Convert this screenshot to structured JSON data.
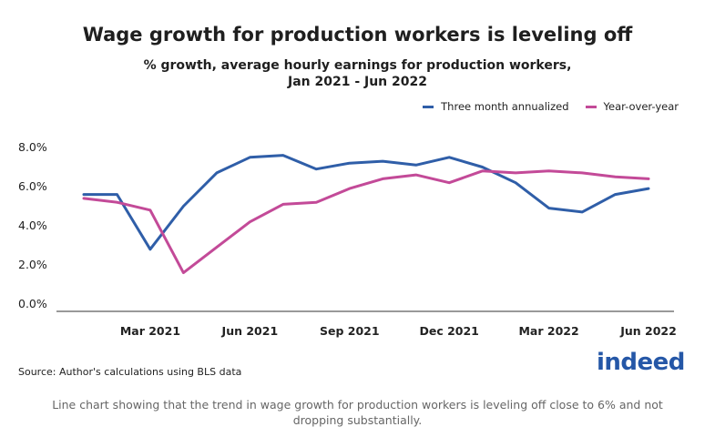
{
  "header": {
    "title": "Wage growth for production workers is leveling off",
    "subtitle_line1": "% growth, average hourly earnings for production workers,",
    "subtitle_line2": "Jan 2021 - Jun 2022"
  },
  "footer": {
    "source": "Source: Author's calculations using BLS data",
    "logo": "indeed",
    "caption": "Line chart showing that the trend in wage growth for production workers is leveling off close to 6% and not dropping substantially."
  },
  "chart_data": {
    "type": "line",
    "x": [
      "Jan 2021",
      "Feb 2021",
      "Mar 2021",
      "Apr 2021",
      "May 2021",
      "Jun 2021",
      "Jul 2021",
      "Aug 2021",
      "Sep 2021",
      "Oct 2021",
      "Nov 2021",
      "Dec 2021",
      "Jan 2022",
      "Feb 2022",
      "Mar 2022",
      "Apr 2022",
      "May 2022",
      "Jun 2022"
    ],
    "x_tick_labels": [
      "Mar 2021",
      "Jun 2021",
      "Sep 2021",
      "Dec 2021",
      "Mar 2022",
      "Jun 2022"
    ],
    "x_tick_indices": [
      2,
      5,
      8,
      11,
      14,
      17
    ],
    "y_tick_labels": [
      "0.0%",
      "2.0%",
      "4.0%",
      "6.0%",
      "8.0%"
    ],
    "y_ticks": [
      0,
      2,
      4,
      6,
      8
    ],
    "ylim": [
      0,
      8.5
    ],
    "legend_position": "top-right",
    "series": [
      {
        "name": "Three month annualized",
        "color": "#2f5ea8",
        "values": [
          5.6,
          5.6,
          2.8,
          5.0,
          6.7,
          7.5,
          7.6,
          6.9,
          7.2,
          7.3,
          7.1,
          7.5,
          7.0,
          6.2,
          4.9,
          4.7,
          5.6,
          5.9
        ]
      },
      {
        "name": "Year-over-year",
        "color": "#c34a98",
        "values": [
          5.4,
          5.2,
          4.8,
          1.6,
          2.9,
          4.2,
          5.1,
          5.2,
          5.9,
          6.4,
          6.6,
          6.2,
          6.8,
          6.7,
          6.8,
          6.7,
          6.5,
          6.4
        ]
      }
    ]
  }
}
